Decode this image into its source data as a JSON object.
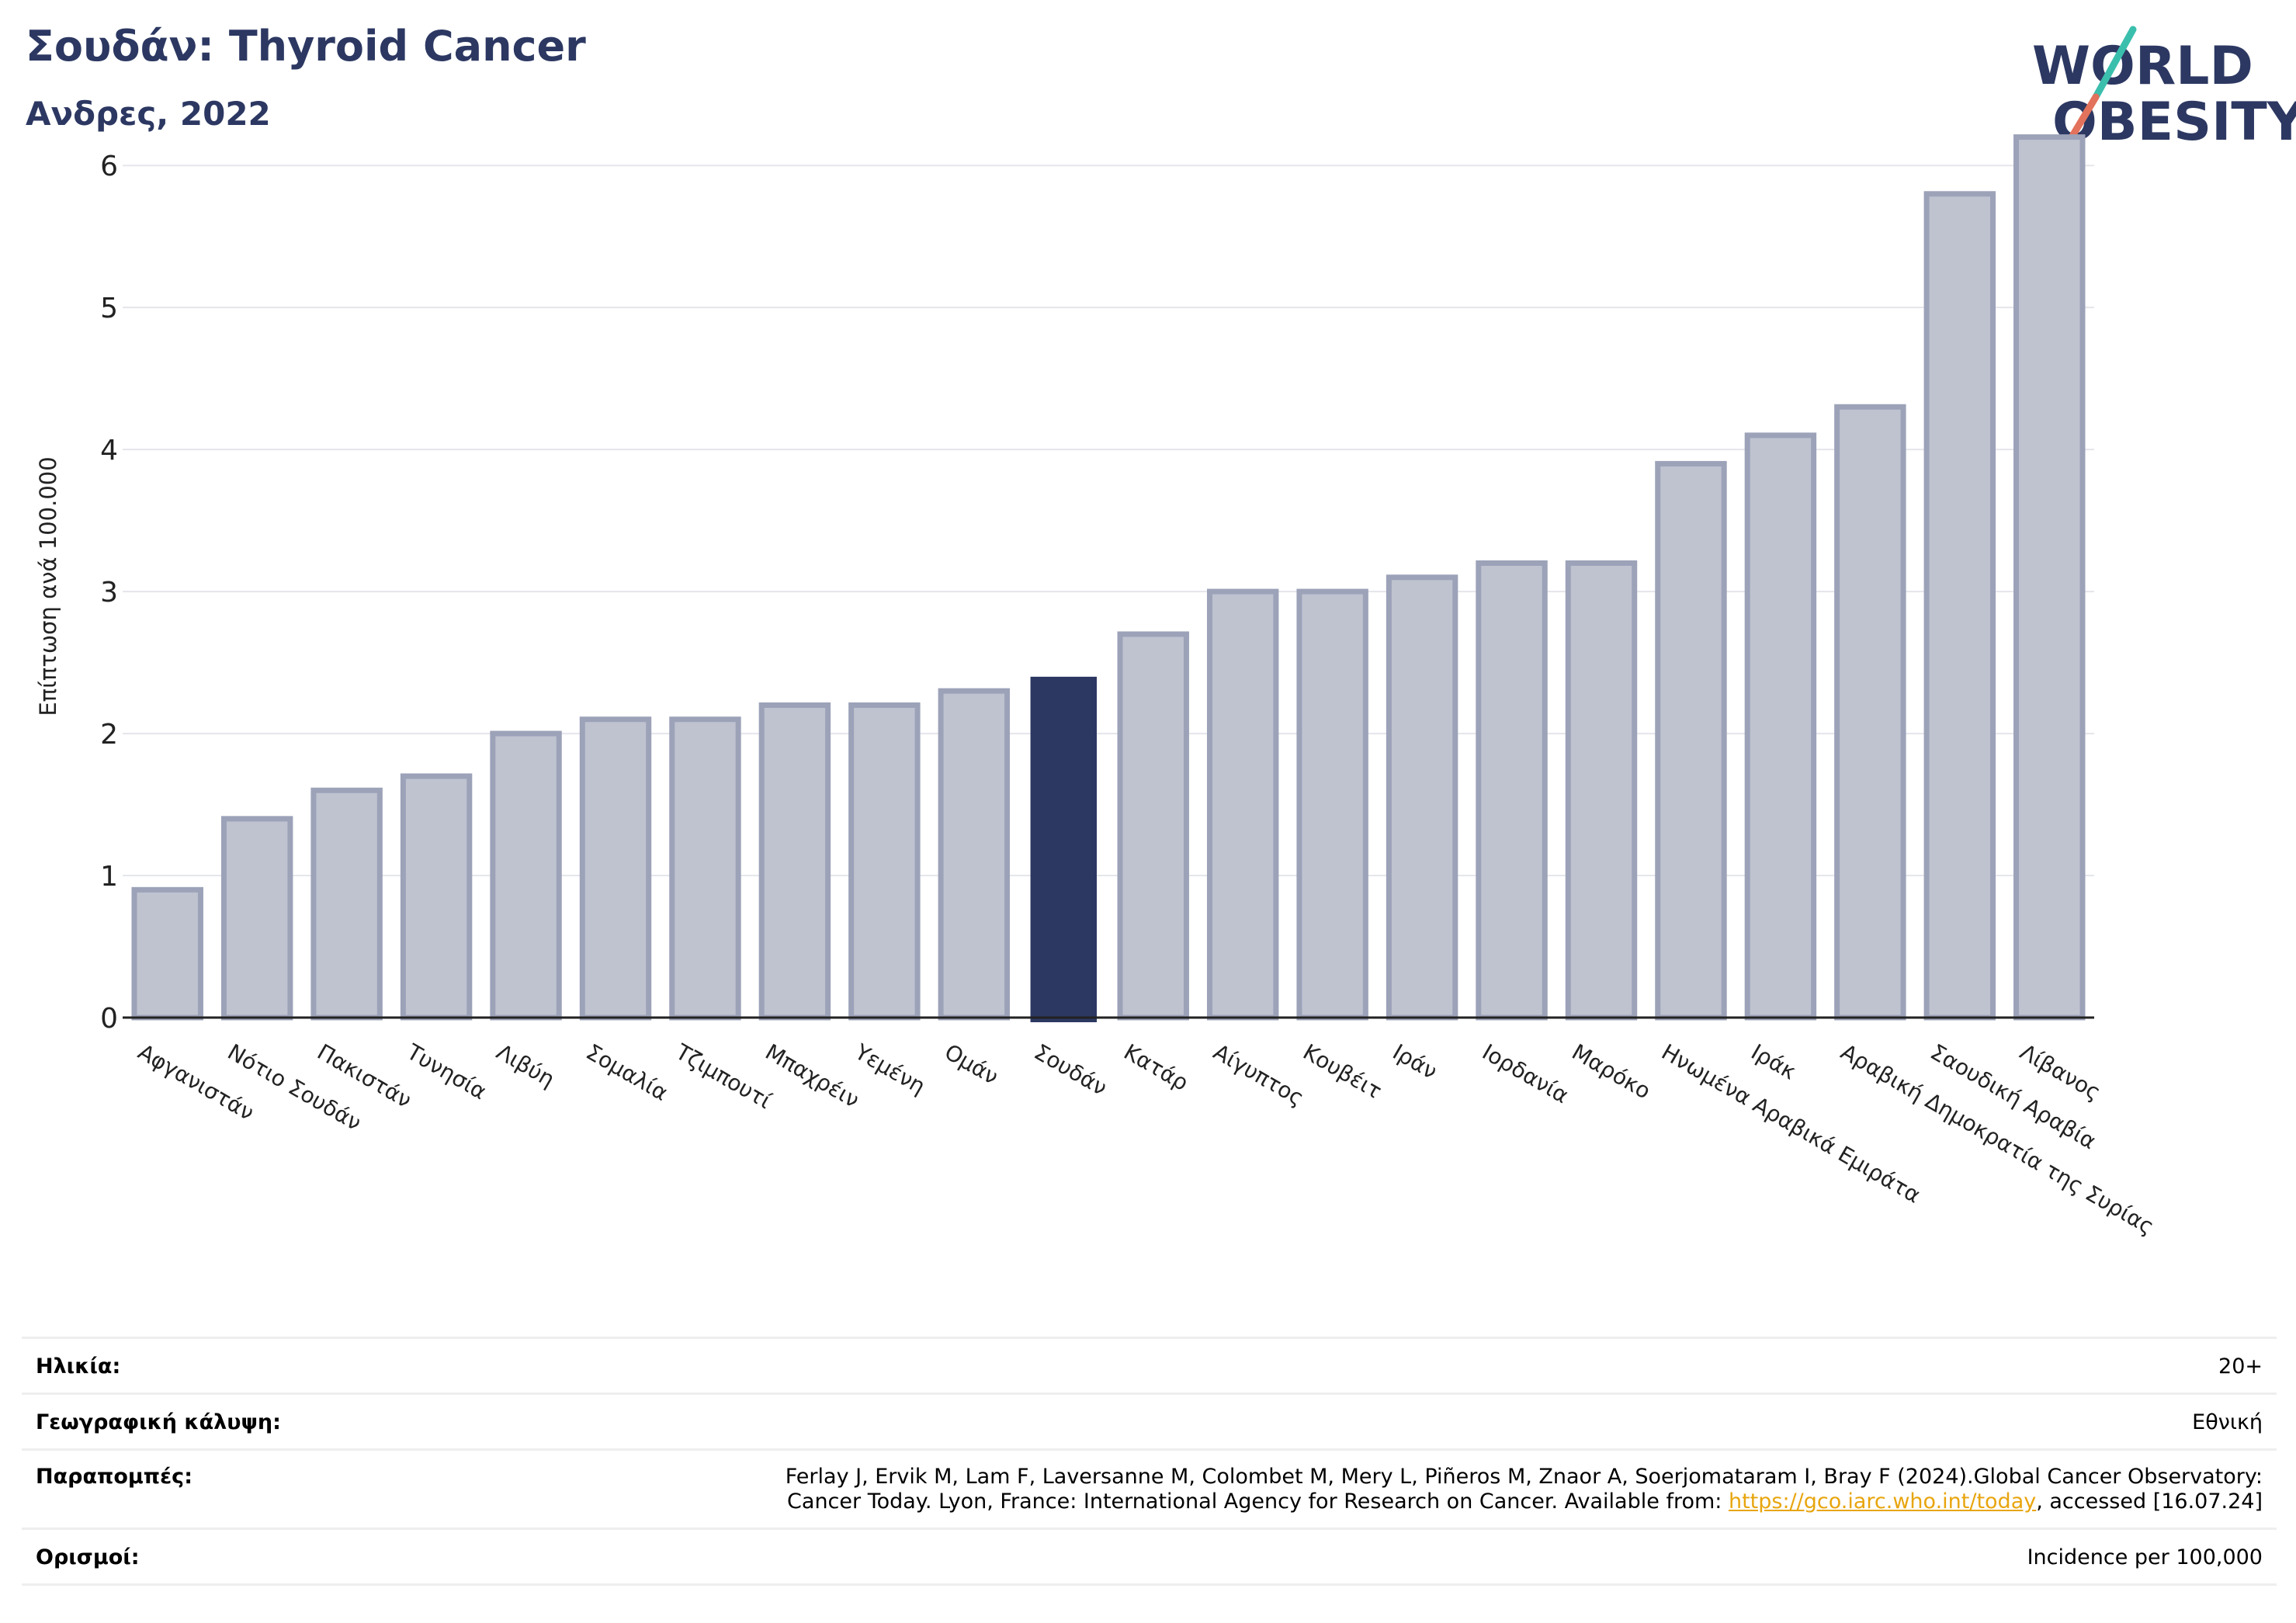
{
  "header": {
    "title": "Σουδάν: Thyroid Cancer",
    "subtitle": "Ανδρες, 2022"
  },
  "logo": {
    "line1": "WORLD",
    "line2": "OBESITY",
    "slash_colors": [
      "#3bbfad",
      "#e2725b"
    ]
  },
  "colors": {
    "highlight": "#2c3862",
    "bar": "#bfc3d0",
    "bar_stroke": "#9ca2b8",
    "grid": "#e5e6ec"
  },
  "chart_data": {
    "type": "bar",
    "ylabel": "Επίπτωση ανά 100.000",
    "ylim": [
      0,
      6.4
    ],
    "yticks": [
      0,
      1,
      2,
      3,
      4,
      5,
      6
    ],
    "grid": true,
    "highlight": "Σουδάν",
    "categories": [
      "Αφγανιστάν",
      "Νότιο Σουδάν",
      "Πακιστάν",
      "Τυνησία",
      "Λιβύη",
      "Σομαλία",
      "Τζιμπουτί",
      "Μπαχρέιν",
      "Υεμένη",
      "Ομάν",
      "Σουδάν",
      "Κατάρ",
      "Αίγυπτος",
      "Κουβέιτ",
      "Ιράν",
      "Ιορδανία",
      "Μαρόκο",
      "Ηνωμένα Αραβικά Εμιράτα",
      "Ιράκ",
      "Αραβική Δημοκρατία της Συρίας",
      "Σαουδική Αραβία",
      "Λίβανος"
    ],
    "values": [
      0.9,
      1.4,
      1.6,
      1.7,
      2.0,
      2.1,
      2.1,
      2.2,
      2.2,
      2.3,
      2.4,
      2.7,
      3.0,
      3.0,
      3.1,
      3.2,
      3.2,
      3.9,
      4.1,
      4.3,
      5.8,
      6.2
    ]
  },
  "info": {
    "age_label": "Ηλικία:",
    "age_value": "20+",
    "coverage_label": "Γεωγραφική κάλυψη:",
    "coverage_value": "Εθνική",
    "refs_label": "Παραπομπές:",
    "refs_line1": "Ferlay J, Ervik M, Lam F, Laversanne M, Colombet M, Mery L, Piñeros M, Znaor A, Soerjomataram I, Bray F (2024).Global Cancer Observatory:",
    "refs_line2_pre": "Cancer Today. Lyon, France: International Agency for Research on Cancer. Available from: ",
    "refs_link": "https://gco.iarc.who.int/today",
    "refs_line2_post": ", accessed [16.07.24]",
    "definitions_label": "Ορισμοί:",
    "definitions_value": "Incidence per 100,000"
  }
}
